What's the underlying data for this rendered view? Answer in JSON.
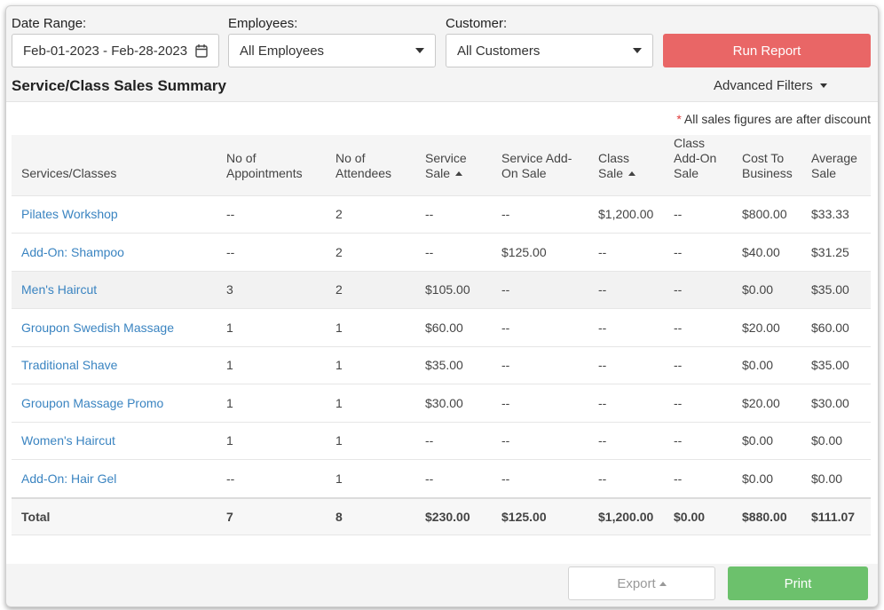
{
  "filters": {
    "date_range": {
      "label": "Date Range:",
      "value": "Feb-01-2023 - Feb-28-2023",
      "icon": "calendar-icon"
    },
    "employees": {
      "label": "Employees:",
      "value": "All Employees"
    },
    "customer": {
      "label": "Customer:",
      "value": "All Customers"
    },
    "run_report_label": "Run Report"
  },
  "header": {
    "title": "Service/Class Sales Summary",
    "advanced_filters": "Advanced Filters"
  },
  "note": {
    "star": "*",
    "text": " All sales figures are after discount"
  },
  "table": {
    "columns": [
      {
        "line1": "Services/Classes",
        "line2": ""
      },
      {
        "line1": "No of",
        "line2": "Appointments"
      },
      {
        "line1": "No of",
        "line2": "Attendees"
      },
      {
        "line1": "Service",
        "line2": "Sale"
      },
      {
        "line1": "Service Add-",
        "line2": "On Sale"
      },
      {
        "line1": "Class",
        "line2": "Sale"
      },
      {
        "line1": "Class",
        "line2": "Add-On",
        "line3": "Sale"
      },
      {
        "line1": "Cost To",
        "line2": "Business"
      },
      {
        "line1": "Average",
        "line2": "Sale"
      }
    ],
    "rows": [
      [
        "Pilates Workshop",
        "--",
        "2",
        "--",
        "--",
        "$1,200.00",
        "--",
        "$800.00",
        "$33.33"
      ],
      [
        "Add-On: Shampoo",
        "--",
        "2",
        "--",
        "$125.00",
        "--",
        "--",
        "$40.00",
        "$31.25"
      ],
      [
        "Men's Haircut",
        "3",
        "2",
        "$105.00",
        "--",
        "--",
        "--",
        "$0.00",
        "$35.00"
      ],
      [
        "Groupon Swedish Massage",
        "1",
        "1",
        "$60.00",
        "--",
        "--",
        "--",
        "$20.00",
        "$60.00"
      ],
      [
        "Traditional Shave",
        "1",
        "1",
        "$35.00",
        "--",
        "--",
        "--",
        "$0.00",
        "$35.00"
      ],
      [
        "Groupon Massage Promo",
        "1",
        "1",
        "$30.00",
        "--",
        "--",
        "--",
        "$20.00",
        "$30.00"
      ],
      [
        "Women's Haircut",
        "1",
        "1",
        "--",
        "--",
        "--",
        "--",
        "$0.00",
        "$0.00"
      ],
      [
        "Add-On: Hair Gel",
        "--",
        "1",
        "--",
        "--",
        "--",
        "--",
        "$0.00",
        "$0.00"
      ]
    ],
    "total": [
      "Total",
      "7",
      "8",
      "$230.00",
      "$125.00",
      "$1,200.00",
      "$0.00",
      "$880.00",
      "$111.07"
    ]
  },
  "footer": {
    "export_label": "Export",
    "print_label": "Print"
  },
  "colors": {
    "run_report": "#e96666",
    "print": "#6cc16c",
    "link": "#3a84c1",
    "note_star": "#e03b3b"
  }
}
